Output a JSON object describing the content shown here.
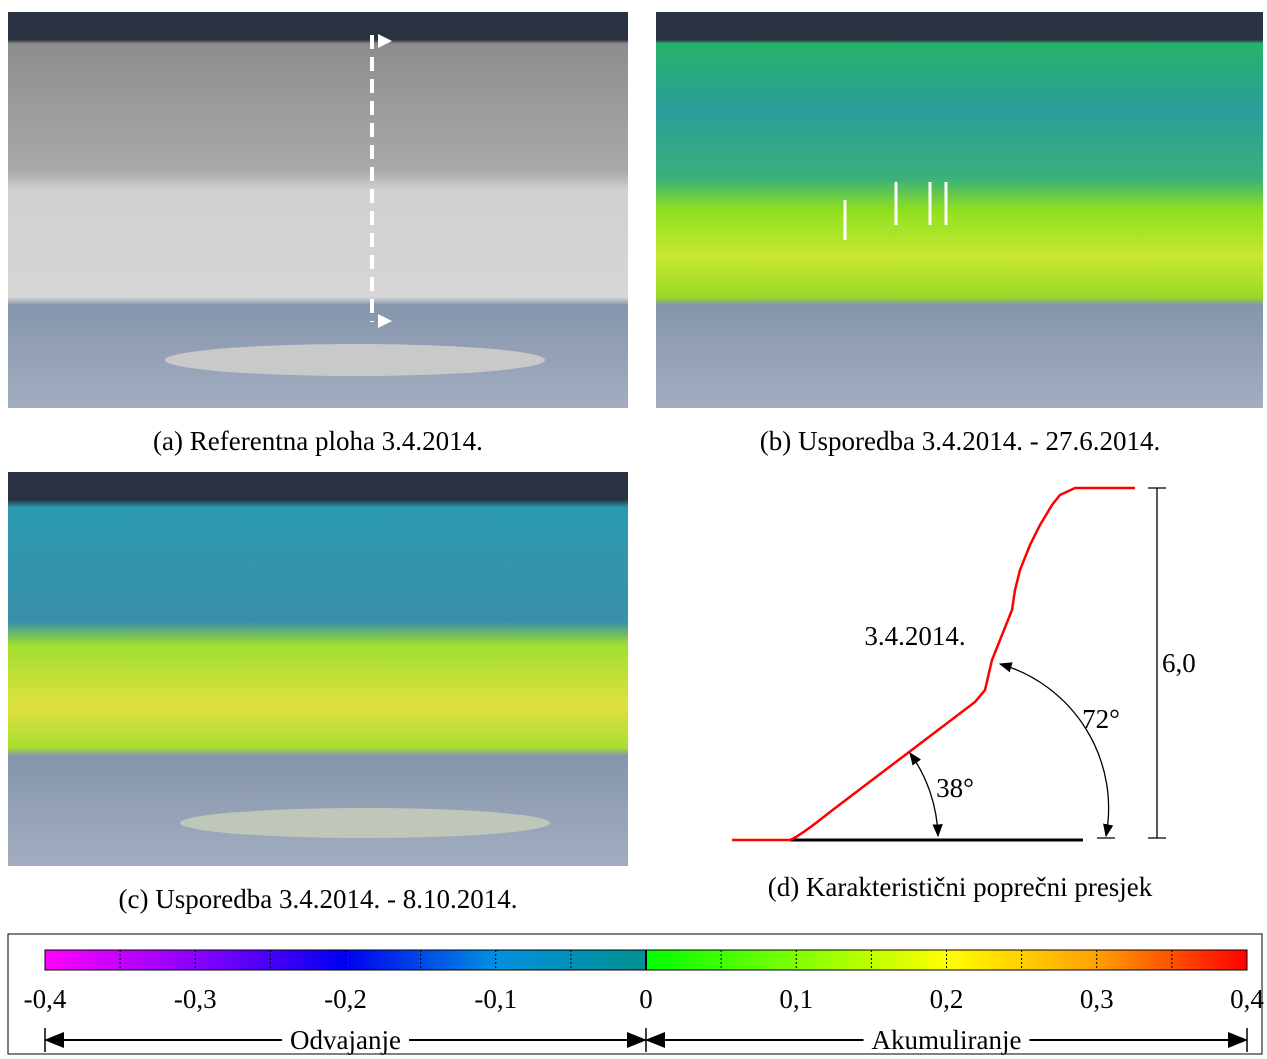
{
  "panels": [
    {
      "caption": "(a) Referentna ploha 3.4.2014."
    },
    {
      "caption": "(b) Usporedba 3.4.2014. - 27.6.2014."
    },
    {
      "caption": "(c) Usporedba 3.4.2014. - 8.10.2014."
    },
    {
      "caption": "(d) Karakteristični poprečni presjek"
    }
  ],
  "diagram": {
    "date_label": "3.4.2014.",
    "upper_angle": "72°",
    "lower_angle": "38°",
    "height": "6,0"
  },
  "colorbar": {
    "range": [
      -0.4,
      0.4
    ],
    "ticks": [
      {
        "value": -0.4,
        "label": "-0,4"
      },
      {
        "value": -0.3,
        "label": "-0,3"
      },
      {
        "value": -0.2,
        "label": "-0,2"
      },
      {
        "value": -0.1,
        "label": "-0,1"
      },
      0,
      {
        "value": 0.1,
        "label": "0,1"
      },
      {
        "value": 0.2,
        "label": "0,2"
      },
      {
        "value": 0.3,
        "label": "0,3"
      },
      {
        "value": 0.4,
        "label": "0,4"
      }
    ],
    "left_label": "Odvajanje",
    "right_label": "Akumuliranje"
  }
}
